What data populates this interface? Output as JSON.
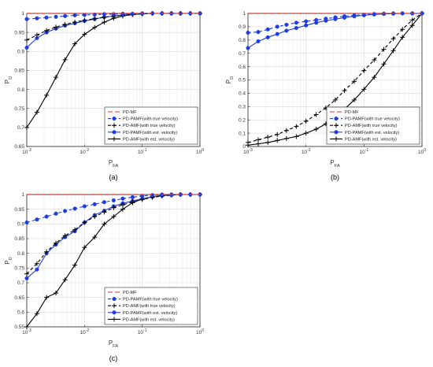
{
  "legend": {
    "entries": [
      "PD-MF",
      "PD-PAMF(with true velocity)",
      "PD-AMF(with true velocity)",
      "PD-PAMF(with est. velocity)",
      "PD-AMF(with est. velocity)"
    ],
    "placement": "bottom-right"
  },
  "series_styles": [
    {
      "color": "#e8322c",
      "dash": "6,3",
      "marker": "none"
    },
    {
      "color": "#1f3ddc",
      "dash": "4,3",
      "marker": "dot"
    },
    {
      "color": "#000000",
      "dash": "4,3",
      "marker": "plus"
    },
    {
      "color": "#1f3ddc",
      "dash": "",
      "marker": "dot"
    },
    {
      "color": "#000000",
      "dash": "",
      "marker": "plus"
    }
  ],
  "chart_data": [
    {
      "type": "line",
      "panel_label": "(a)",
      "xscale": "log",
      "xlim": [
        0.001,
        1
      ],
      "ylim": [
        0.65,
        1
      ],
      "xlabel": "P_FA",
      "ylabel": "P_D",
      "xticks": [
        0.001,
        0.01,
        0.1,
        1
      ],
      "xtick_labels": [
        "10^-3",
        "10^-2",
        "10^-1",
        "10^0"
      ],
      "yticks": [
        0.65,
        0.7,
        0.75,
        0.8,
        0.85,
        0.9,
        0.95,
        1
      ],
      "ytick_labels": [
        "0.65",
        "0.7",
        "0.75",
        "0.8",
        "0.85",
        "0.9",
        "0.95",
        "1"
      ],
      "grid": true,
      "x": [
        0.001,
        0.0015,
        0.0022,
        0.0032,
        0.0046,
        0.0068,
        0.01,
        0.015,
        0.022,
        0.032,
        0.046,
        0.068,
        0.1,
        0.15,
        0.22,
        0.32,
        0.46,
        0.68,
        1
      ],
      "series": [
        {
          "name": "PD-MF",
          "values": [
            1,
            1,
            1,
            1,
            1,
            1,
            1,
            1,
            1,
            1,
            1,
            1,
            1,
            1,
            1,
            1,
            1,
            1,
            1
          ]
        },
        {
          "name": "PD-PAMF(with true velocity)",
          "values": [
            0.985,
            0.987,
            0.989,
            0.991,
            0.993,
            0.995,
            0.996,
            0.997,
            0.998,
            0.998,
            0.999,
            0.999,
            1,
            1,
            1,
            1,
            1,
            1,
            1
          ]
        },
        {
          "name": "PD-AMF(with true velocity)",
          "values": [
            0.93,
            0.943,
            0.955,
            0.964,
            0.971,
            0.977,
            0.982,
            0.986,
            0.99,
            0.993,
            0.995,
            0.997,
            0.999,
            1,
            1,
            1,
            1,
            1,
            1
          ]
        },
        {
          "name": "PD-PAMF(with est. velocity)",
          "values": [
            0.91,
            0.935,
            0.95,
            0.96,
            0.968,
            0.974,
            0.98,
            0.985,
            0.99,
            0.993,
            0.996,
            0.998,
            0.999,
            1,
            1,
            1,
            1,
            1,
            1
          ]
        },
        {
          "name": "PD-AMF(with est. velocity)",
          "values": [
            0.7,
            0.74,
            0.785,
            0.832,
            0.878,
            0.92,
            0.945,
            0.963,
            0.977,
            0.987,
            0.993,
            0.997,
            0.999,
            1,
            1,
            1,
            1,
            1,
            1
          ]
        }
      ]
    },
    {
      "type": "line",
      "panel_label": "(b)",
      "xscale": "log",
      "xlim": [
        0.001,
        1
      ],
      "ylim": [
        0,
        1
      ],
      "xlabel": "P_FA",
      "ylabel": "P_D",
      "xticks": [
        0.001,
        0.01,
        0.1,
        1
      ],
      "xtick_labels": [
        "10^-3",
        "10^-2",
        "10^-1",
        "10^0"
      ],
      "yticks": [
        0,
        0.1,
        0.2,
        0.3,
        0.4,
        0.5,
        0.6,
        0.7,
        0.8,
        0.9,
        1
      ],
      "ytick_labels": [
        "0",
        "0.1",
        "0.2",
        "0.3",
        "0.4",
        "0.5",
        "0.6",
        "0.7",
        "0.8",
        "0.9",
        "1"
      ],
      "grid": true,
      "x": [
        0.001,
        0.0015,
        0.0022,
        0.0032,
        0.0046,
        0.0068,
        0.01,
        0.015,
        0.022,
        0.032,
        0.046,
        0.068,
        0.1,
        0.15,
        0.22,
        0.32,
        0.46,
        0.68,
        1
      ],
      "series": [
        {
          "name": "PD-MF",
          "values": [
            1,
            1,
            1,
            1,
            1,
            1,
            1,
            1,
            1,
            1,
            1,
            1,
            1,
            1,
            1,
            1,
            1,
            1,
            1
          ]
        },
        {
          "name": "PD-PAMF(with true velocity)",
          "values": [
            0.855,
            0.86,
            0.88,
            0.9,
            0.915,
            0.93,
            0.94,
            0.95,
            0.96,
            0.97,
            0.978,
            0.985,
            0.99,
            0.995,
            0.998,
            1,
            1,
            1,
            1
          ]
        },
        {
          "name": "PD-AMF(with true velocity)",
          "values": [
            0.03,
            0.05,
            0.07,
            0.09,
            0.12,
            0.15,
            0.19,
            0.24,
            0.29,
            0.35,
            0.42,
            0.49,
            0.57,
            0.65,
            0.73,
            0.81,
            0.88,
            0.95,
            1
          ]
        },
        {
          "name": "PD-PAMF(with est. velocity)",
          "values": [
            0.74,
            0.79,
            0.82,
            0.845,
            0.87,
            0.89,
            0.91,
            0.93,
            0.945,
            0.957,
            0.968,
            0.978,
            0.986,
            0.992,
            0.996,
            0.998,
            1,
            1,
            1
          ]
        },
        {
          "name": "PD-AMF(with est. velocity)",
          "values": [
            0.01,
            0.02,
            0.03,
            0.045,
            0.06,
            0.075,
            0.1,
            0.13,
            0.17,
            0.22,
            0.28,
            0.35,
            0.43,
            0.52,
            0.62,
            0.72,
            0.82,
            0.91,
            1
          ]
        }
      ]
    },
    {
      "type": "line",
      "panel_label": "(c)",
      "xscale": "log",
      "xlim": [
        0.001,
        1
      ],
      "ylim": [
        0.55,
        1
      ],
      "xlabel": "P_FA",
      "ylabel": "P_D",
      "xticks": [
        0.001,
        0.01,
        0.1,
        1
      ],
      "xtick_labels": [
        "10^-3",
        "10^-2",
        "10^-1",
        "10^0"
      ],
      "yticks": [
        0.55,
        0.6,
        0.65,
        0.7,
        0.75,
        0.8,
        0.85,
        0.9,
        0.95,
        1
      ],
      "ytick_labels": [
        "0.55",
        "0.6",
        "0.65",
        "0.7",
        "0.75",
        "0.8",
        "0.85",
        "0.9",
        "0.95",
        "1"
      ],
      "grid": true,
      "x": [
        0.001,
        0.0015,
        0.0022,
        0.0032,
        0.0046,
        0.0068,
        0.01,
        0.015,
        0.022,
        0.032,
        0.046,
        0.068,
        0.1,
        0.15,
        0.22,
        0.32,
        0.46,
        0.68,
        1
      ],
      "series": [
        {
          "name": "PD-MF",
          "values": [
            1,
            1,
            1,
            1,
            1,
            1,
            1,
            1,
            1,
            1,
            1,
            1,
            1,
            1,
            1,
            1,
            1,
            1,
            1
          ]
        },
        {
          "name": "PD-PAMF(with true velocity)",
          "values": [
            0.905,
            0.915,
            0.925,
            0.935,
            0.944,
            0.952,
            0.96,
            0.967,
            0.974,
            0.98,
            0.986,
            0.991,
            0.995,
            0.998,
            1,
            1,
            1,
            1,
            1
          ]
        },
        {
          "name": "PD-AMF(with true velocity)",
          "values": [
            0.73,
            0.765,
            0.805,
            0.835,
            0.86,
            0.88,
            0.905,
            0.925,
            0.94,
            0.955,
            0.965,
            0.975,
            0.983,
            0.99,
            0.995,
            0.998,
            1,
            1,
            1
          ]
        },
        {
          "name": "PD-PAMF(with est. velocity)",
          "values": [
            0.715,
            0.745,
            0.8,
            0.83,
            0.855,
            0.875,
            0.905,
            0.93,
            0.945,
            0.96,
            0.97,
            0.978,
            0.986,
            0.992,
            0.996,
            0.998,
            1,
            1,
            1
          ]
        },
        {
          "name": "PD-AMF(with est. velocity)",
          "values": [
            0.55,
            0.595,
            0.65,
            0.665,
            0.71,
            0.76,
            0.82,
            0.855,
            0.9,
            0.925,
            0.95,
            0.972,
            0.985,
            0.993,
            0.997,
            0.999,
            1,
            1,
            1
          ]
        }
      ]
    }
  ]
}
